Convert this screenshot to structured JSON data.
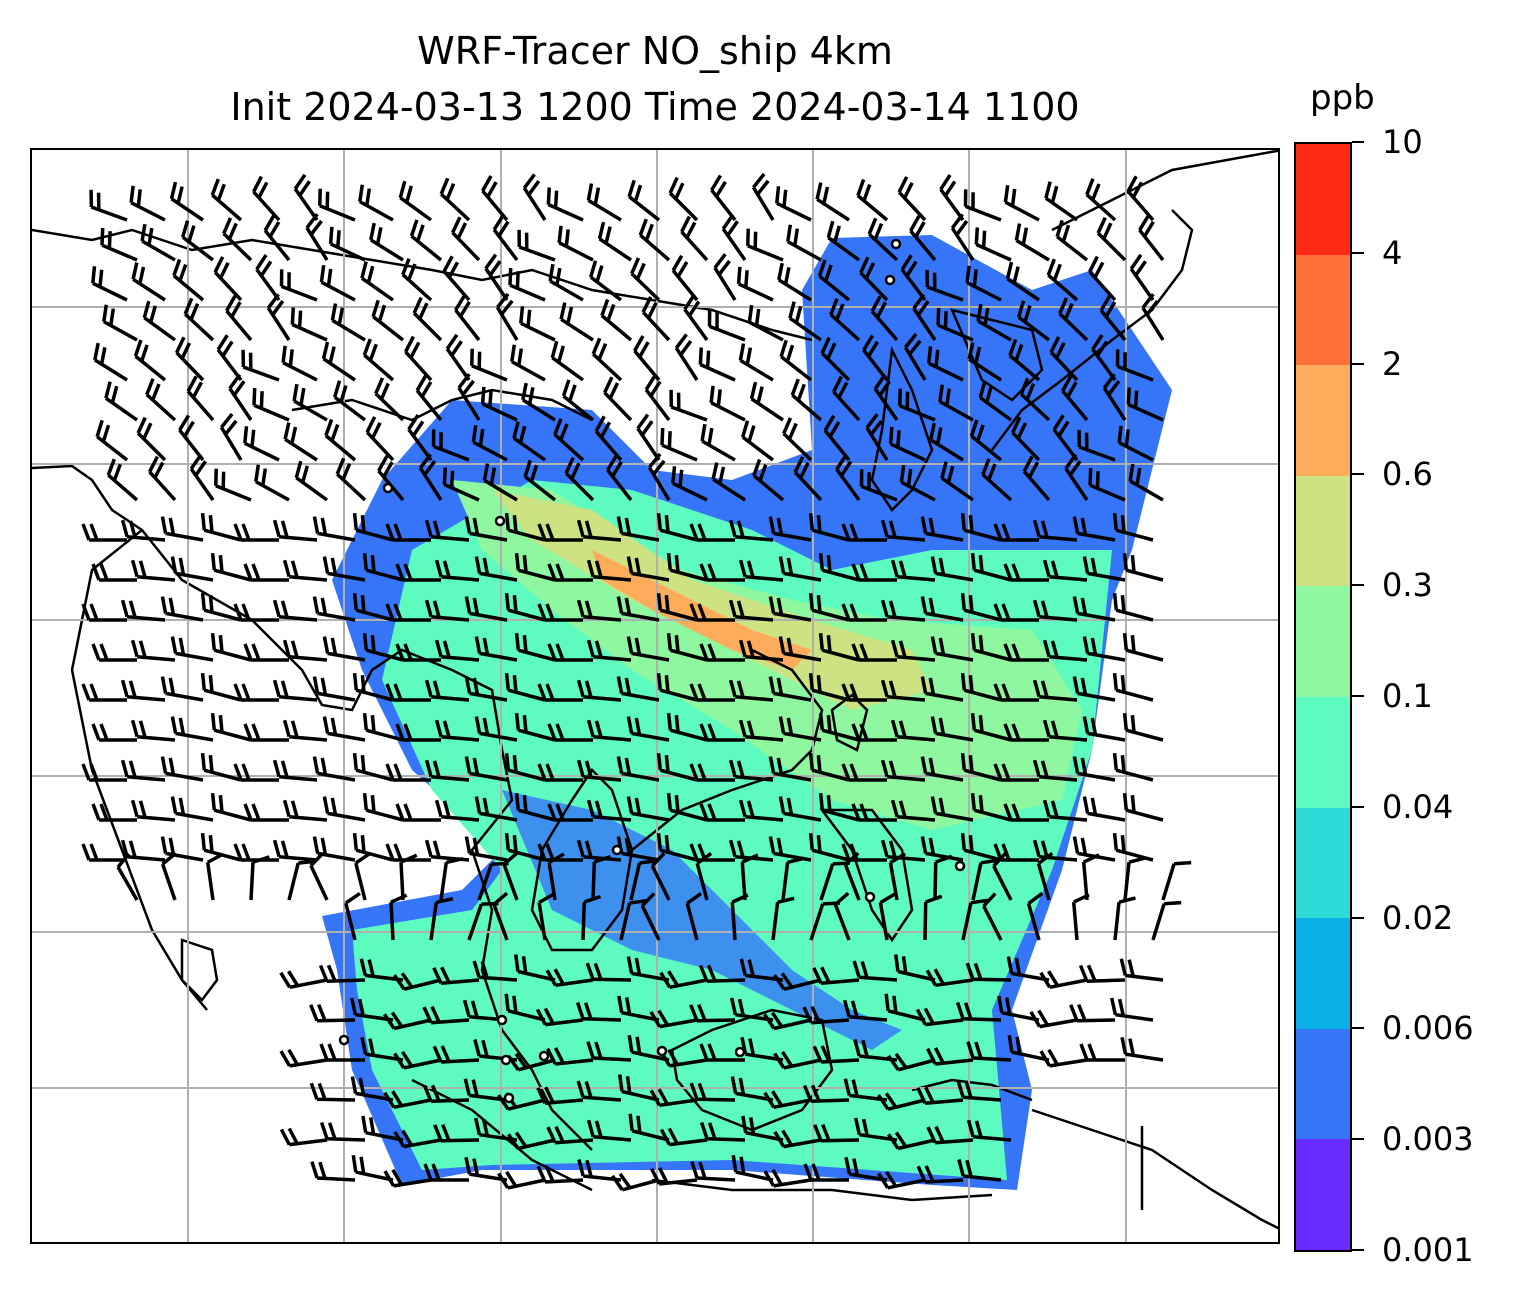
{
  "title": {
    "line1": "WRF-Tracer NO_ship 4km",
    "line2": "Init 2024-03-13 1200 Time 2024-03-14 1100"
  },
  "map": {
    "projection": "PlateCarree",
    "gridlines": true,
    "coastlines": true,
    "wind_barbs": true,
    "field": "NO_ship tracer concentration"
  },
  "colorbar": {
    "unit": "ppb",
    "tick_labels": [
      "0.001",
      "0.003",
      "0.006",
      "0.02",
      "0.04",
      "0.1",
      "0.3",
      "0.6",
      "2",
      "4",
      "10"
    ],
    "colors": [
      "#6a2bff",
      "#3675f7",
      "#0aafe8",
      "#2edad8",
      "#5dfbc0",
      "#8ff79f",
      "#cde282",
      "#fdac5c",
      "#ff7137",
      "#ff2a15"
    ]
  }
}
